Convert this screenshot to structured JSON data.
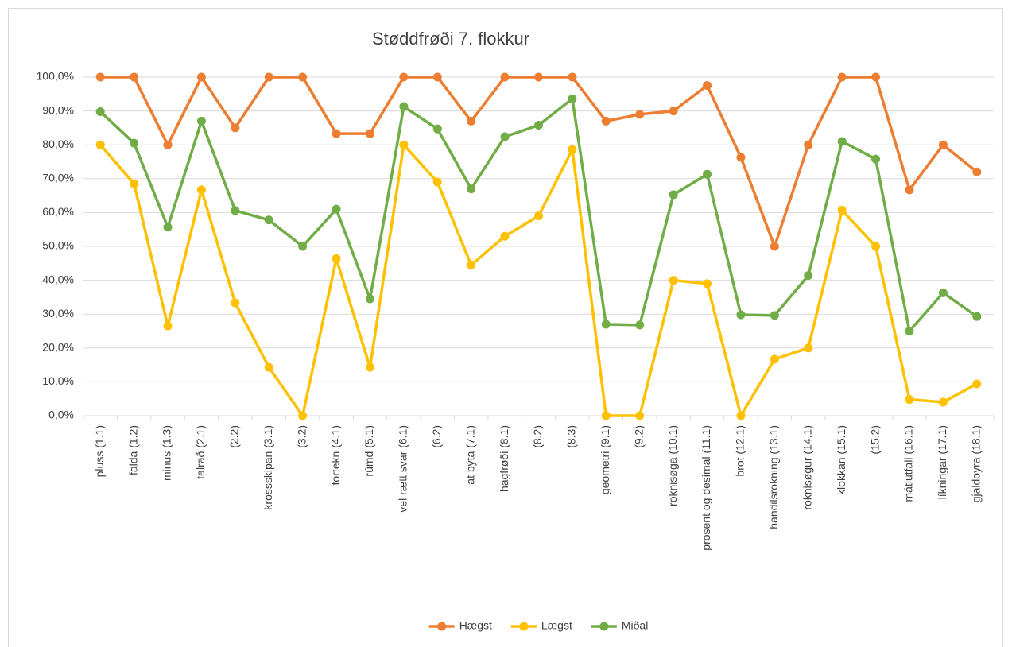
{
  "chart_data": {
    "type": "line",
    "title": "Støddfrøði 7. flokkur",
    "categories": [
      "pluss (1.1)",
      "falda (1.2)",
      "minus (1.3)",
      "talrað (2.1)",
      "(2.2)",
      "krossskipan (3.1)",
      "(3.2)",
      "fortekn (4.1)",
      "rúmd (5.1)",
      "vel rætt svar (6.1)",
      "(6.2)",
      "at býta (7.1)",
      "hagfrøði (8.1)",
      "(8.2)",
      "(8.3)",
      "geometri (9.1)",
      "(9.2)",
      "roknisøga (10.1)",
      "prosent og desimal (11.1)",
      "brot (12.1)",
      "handilsrokning (13.1)",
      "roknisøgur (14.1)",
      "klokkan (15.1)",
      "(15.2)",
      "mátlutfall (16.1)",
      "líkningar (17.1)",
      "gjaldoyra (18.1)"
    ],
    "series": [
      {
        "name": "Hægst",
        "color": "#ED7D31",
        "values": [
          100,
          100,
          80,
          100,
          85,
          100,
          100,
          83.3,
          83.3,
          100,
          100,
          87,
          100,
          100,
          100,
          87,
          89,
          90,
          97.5,
          76.3,
          50,
          80,
          100,
          100,
          66.7,
          80,
          72
        ]
      },
      {
        "name": "Lægst",
        "color": "#FFC000",
        "values": [
          80,
          68.5,
          26.5,
          66.7,
          33.3,
          14.3,
          0,
          46.4,
          14.3,
          80,
          69,
          44.5,
          53,
          59,
          78.6,
          0,
          0,
          40,
          39,
          0,
          16.7,
          20,
          60.7,
          50,
          4.8,
          4,
          9.4
        ]
      },
      {
        "name": "Miðal",
        "color": "#70AD47",
        "values": [
          89.8,
          80.5,
          55.7,
          87,
          60.6,
          57.8,
          50,
          61,
          34.5,
          91.3,
          84.7,
          67,
          82.4,
          85.8,
          93.6,
          27,
          26.8,
          65.3,
          71.3,
          29.8,
          29.6,
          41.4,
          81,
          75.8,
          25,
          36.3,
          29.3
        ]
      }
    ],
    "ylim": [
      0,
      100
    ],
    "yticks": [
      {
        "value": 0,
        "label": "0,0%"
      },
      {
        "value": 10,
        "label": "10,0%"
      },
      {
        "value": 20,
        "label": "20,0%"
      },
      {
        "value": 30,
        "label": "30,0%"
      },
      {
        "value": 40,
        "label": "40,0%"
      },
      {
        "value": 50,
        "label": "50,0%"
      },
      {
        "value": 60,
        "label": "60,0%"
      },
      {
        "value": 70,
        "label": "70,0%"
      },
      {
        "value": 80,
        "label": "80,0%"
      },
      {
        "value": 90,
        "label": "90,0%"
      },
      {
        "value": 100,
        "label": "100,0%"
      }
    ],
    "grid": true,
    "legend": "bottom"
  }
}
